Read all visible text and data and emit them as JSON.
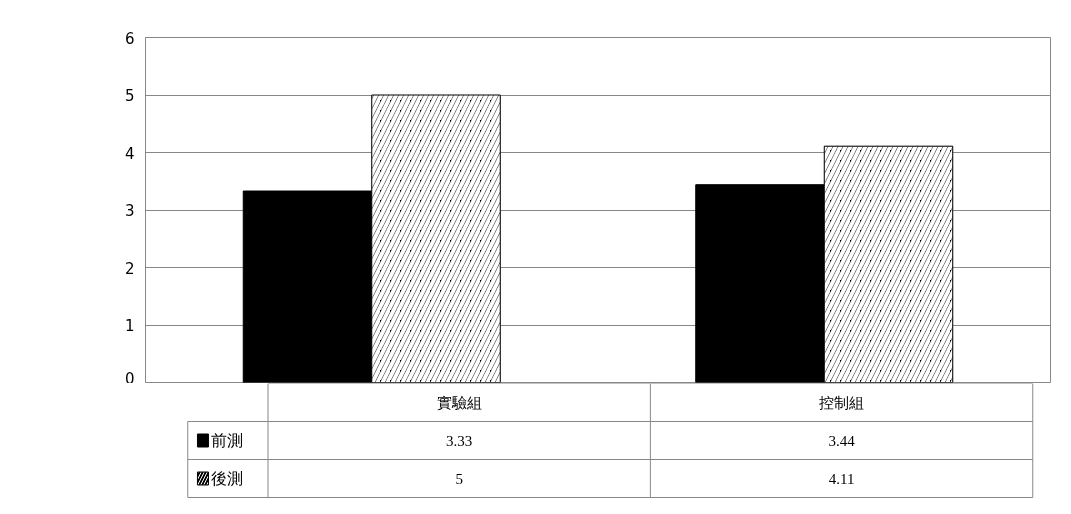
{
  "chart_data": {
    "type": "bar",
    "categories": [
      "實驗組",
      "控制組"
    ],
    "series": [
      {
        "name": "前測",
        "color": "#000000",
        "values": [
          3.33,
          3.44
        ]
      },
      {
        "name": "後測",
        "color": "#000000",
        "values": [
          5,
          4.11
        ]
      }
    ],
    "ylim": [
      0,
      6
    ],
    "yticks": [
      0,
      1,
      2,
      3,
      4,
      5,
      6
    ],
    "grid": "y",
    "legend": "bottom",
    "data_labels": true
  }
}
